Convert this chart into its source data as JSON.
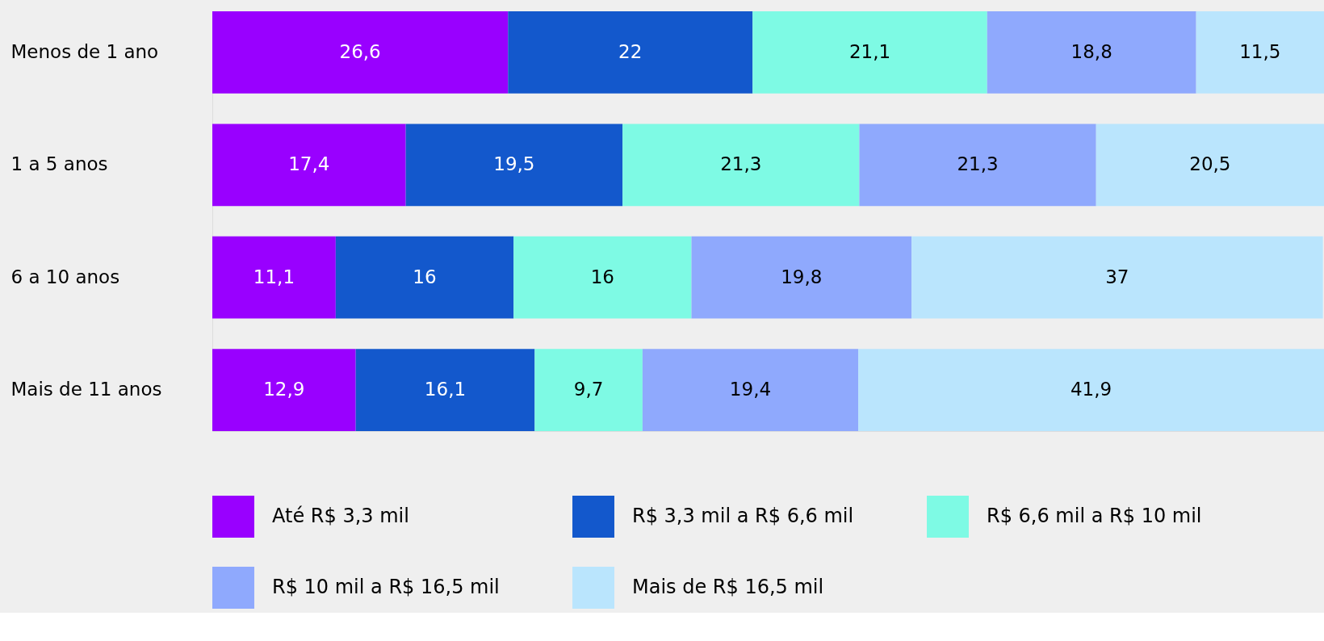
{
  "chart_data": {
    "type": "bar",
    "orientation": "horizontal",
    "stacked": true,
    "legend": "bottom",
    "categories": [
      "Menos de 1 ano",
      "1 a 5 anos",
      "6 a 10 anos",
      "Mais de 11 anos"
    ],
    "series": [
      {
        "name": "Até R$ 3,3 mil",
        "color": "#9900ff",
        "values": [
          26.6,
          17.4,
          11.1,
          12.9
        ],
        "value_labels": [
          "26,6",
          "17,4",
          "11,1",
          "12,9"
        ]
      },
      {
        "name": "R$ 3,3 mil a R$ 6,6 mil",
        "color": "#1358cc",
        "values": [
          22,
          19.5,
          16,
          16.1
        ],
        "value_labels": [
          "22",
          "19,5",
          "16",
          "16,1"
        ]
      },
      {
        "name": "R$ 6,6 mil a R$ 10 mil",
        "color": "#7efae4",
        "values": [
          21.1,
          21.3,
          16,
          9.7
        ],
        "value_labels": [
          "21,1",
          "21,3",
          "16",
          "9,7"
        ]
      },
      {
        "name": "R$ 10 mil a R$ 16,5 mil",
        "color": "#8fa9fd",
        "values": [
          18.8,
          21.3,
          19.8,
          19.4
        ],
        "value_labels": [
          "18,8",
          "21,3",
          "19,8",
          "19,4"
        ]
      },
      {
        "name": "Mais de R$ 16,5 mil",
        "color": "#bae5fd",
        "values": [
          11.5,
          20.5,
          37,
          41.9
        ],
        "value_labels": [
          "11,5",
          "20,5",
          "37",
          "41,9"
        ]
      }
    ]
  }
}
